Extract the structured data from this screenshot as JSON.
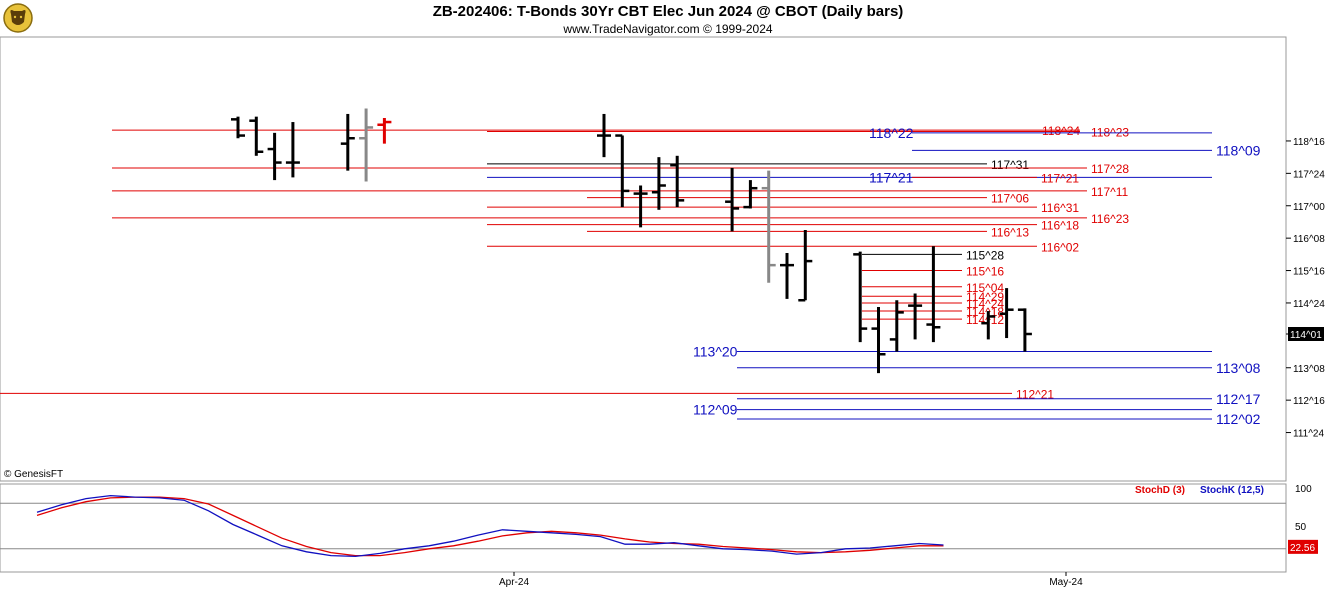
{
  "header": {
    "title": "ZB-202406:  T-Bonds 30Yr CBT Elec Jun 2024 @ CBOT  (Daily bars)",
    "subtitle": "www.TradeNavigator.com © 1999-2024",
    "copyright": "© GenesisFT"
  },
  "colors": {
    "red": "#e00000",
    "blue": "#1010c0",
    "black": "#000000",
    "gray": "#888888",
    "grid": "#c8c8c8"
  },
  "chart_data": {
    "type": "ohlc",
    "price_unit": "32nds",
    "y_ticks": [
      "118^16",
      "117^24",
      "117^00",
      "116^08",
      "115^16",
      "114^24",
      "114^01",
      "113^08",
      "112^16",
      "111^24"
    ],
    "x_ticks": [
      "Apr-24",
      "May-24"
    ],
    "last_price": "114^01",
    "bars": [
      {
        "date": "2024-03-12",
        "o": "119^00",
        "h": "119^02",
        "l": "118^18",
        "c": "118^20",
        "color": "black"
      },
      {
        "date": "2024-03-13",
        "o": "118^31",
        "h": "119^02",
        "l": "118^05",
        "c": "118^08",
        "color": "black"
      },
      {
        "date": "2024-03-14",
        "o": "118^10",
        "h": "118^22",
        "l": "117^19",
        "c": "118^00",
        "color": "black"
      },
      {
        "date": "2024-03-15",
        "o": "118^00",
        "h": "118^30",
        "l": "117^21",
        "c": "118^00",
        "color": "black"
      },
      {
        "date": "2024-03-18",
        "o": "118^14",
        "h": "119^04",
        "l": "117^26",
        "c": "118^18",
        "color": "black"
      },
      {
        "date": "2024-03-19",
        "o": "118^18",
        "h": "119^08",
        "l": "117^18",
        "c": "118^26",
        "color": "gray"
      },
      {
        "date": "2024-03-20",
        "o": "118^28",
        "h": "119^01",
        "l": "118^14",
        "c": "118^30",
        "color": "red"
      },
      {
        "date": "2024-04-01",
        "o": "118^20",
        "h": "119^04",
        "l": "118^04",
        "c": "118^20",
        "color": "black"
      },
      {
        "date": "2024-04-02",
        "o": "118^20",
        "h": "118^20",
        "l": "116^31",
        "c": "117^11",
        "color": "black"
      },
      {
        "date": "2024-04-03",
        "o": "117^09",
        "h": "117^15",
        "l": "116^16",
        "c": "117^09",
        "color": "black"
      },
      {
        "date": "2024-04-04",
        "o": "117^10",
        "h": "118^04",
        "l": "116^29",
        "c": "117^15",
        "color": "black"
      },
      {
        "date": "2024-04-05",
        "o": "117^30",
        "h": "118^05",
        "l": "116^31",
        "c": "117^04",
        "color": "black"
      },
      {
        "date": "2024-04-08",
        "o": "117^03",
        "h": "117^28",
        "l": "116^13",
        "c": "116^30",
        "color": "black"
      },
      {
        "date": "2024-04-09",
        "o": "116^31",
        "h": "117^19",
        "l": "116^30",
        "c": "117^13",
        "color": "black"
      },
      {
        "date": "2024-04-10",
        "o": "117^13",
        "h": "117^26",
        "l": "115^07",
        "c": "115^20",
        "color": "gray"
      },
      {
        "date": "2024-04-11",
        "o": "115^20",
        "h": "115^29",
        "l": "114^27",
        "c": "115^20",
        "color": "black"
      },
      {
        "date": "2024-04-12",
        "o": "114^26",
        "h": "116^14",
        "l": "114^26",
        "c": "115^23",
        "color": "black"
      },
      {
        "date": "2024-04-15",
        "o": "115^28",
        "h": "115^30",
        "l": "113^27",
        "c": "114^05",
        "color": "black"
      },
      {
        "date": "2024-04-16",
        "o": "114^05",
        "h": "114^21",
        "l": "113^04",
        "c": "113^18",
        "color": "black"
      },
      {
        "date": "2024-04-17",
        "o": "113^29",
        "h": "114^26",
        "l": "113^20",
        "c": "114^17",
        "color": "black"
      },
      {
        "date": "2024-04-18",
        "o": "114^22",
        "h": "114^31",
        "l": "113^29",
        "c": "114^22",
        "color": "black"
      },
      {
        "date": "2024-04-19",
        "o": "114^08",
        "h": "116^02",
        "l": "113^27",
        "c": "114^06",
        "color": "black"
      },
      {
        "date": "2024-04-22",
        "o": "114^09",
        "h": "114^18",
        "l": "113^29",
        "c": "114^14",
        "color": "black"
      },
      {
        "date": "2024-04-23",
        "o": "114^16",
        "h": "115^03",
        "l": "113^30",
        "c": "114^19",
        "color": "black"
      },
      {
        "date": "2024-04-24",
        "o": "114^19",
        "h": "114^20",
        "l": "113^20",
        "c": "114^01",
        "color": "black"
      }
    ],
    "levels": [
      {
        "label": "118^24",
        "price": "118^24",
        "color": "red"
      },
      {
        "label": "118^23",
        "price": "118^23",
        "color": "red"
      },
      {
        "label": "118^22",
        "price": "118^22",
        "color": "blue"
      },
      {
        "label": "118^09",
        "price": "118^09",
        "color": "blue"
      },
      {
        "label": "117^31",
        "price": "117^31",
        "color": "black"
      },
      {
        "label": "117^28",
        "price": "117^28",
        "color": "red"
      },
      {
        "label": "117^21",
        "price": "117^21",
        "color": "blue"
      },
      {
        "label": "117^21",
        "price": "117^21",
        "color": "red"
      },
      {
        "label": "117^11",
        "price": "117^11",
        "color": "red"
      },
      {
        "label": "117^06",
        "price": "117^06",
        "color": "red"
      },
      {
        "label": "116^31",
        "price": "116^31",
        "color": "red"
      },
      {
        "label": "116^23",
        "price": "116^23",
        "color": "red"
      },
      {
        "label": "116^18",
        "price": "116^18",
        "color": "red"
      },
      {
        "label": "116^13",
        "price": "116^13",
        "color": "red"
      },
      {
        "label": "116^02",
        "price": "116^02",
        "color": "red"
      },
      {
        "label": "115^28",
        "price": "115^28",
        "color": "black"
      },
      {
        "label": "115^16",
        "price": "115^16",
        "color": "red"
      },
      {
        "label": "115^04",
        "price": "115^04",
        "color": "red"
      },
      {
        "label": "114^29",
        "price": "114^29",
        "color": "red"
      },
      {
        "label": "114^24",
        "price": "114^24",
        "color": "red"
      },
      {
        "label": "114^18",
        "price": "114^18",
        "color": "red"
      },
      {
        "label": "114^12",
        "price": "114^12",
        "color": "red"
      },
      {
        "label": "113^20",
        "price": "113^20",
        "color": "blue"
      },
      {
        "label": "113^08",
        "price": "113^08",
        "color": "blue"
      },
      {
        "label": "112^21",
        "price": "112^21",
        "color": "red"
      },
      {
        "label": "112^17",
        "price": "112^17",
        "color": "blue"
      },
      {
        "label": "112^09",
        "price": "112^09",
        "color": "blue"
      },
      {
        "label": "112^02",
        "price": "112^02",
        "color": "blue"
      }
    ],
    "stochastic": {
      "legend": [
        "StochD (3)",
        "StochK (12,5)"
      ],
      "y_ticks": [
        "100",
        "50"
      ],
      "ylim": [
        0,
        100
      ],
      "levels": [
        80,
        20
      ],
      "last_value": "22.56",
      "k_values": [
        68,
        78,
        86,
        90,
        88,
        87,
        84,
        70,
        52,
        38,
        24,
        16,
        11,
        10,
        14,
        20,
        24,
        30,
        38,
        45,
        43,
        41,
        39,
        36,
        26,
        26,
        28,
        24,
        20,
        19,
        17,
        13,
        15,
        20,
        21,
        24,
        27,
        25
      ],
      "d_values": [
        64,
        74,
        82,
        87,
        88,
        88,
        86,
        79,
        64,
        49,
        34,
        23,
        15,
        11,
        11,
        15,
        20,
        24,
        30,
        37,
        41,
        43,
        41,
        38,
        33,
        29,
        27,
        26,
        23,
        21,
        19,
        16,
        15,
        16,
        18,
        21,
        24,
        24
      ]
    }
  }
}
